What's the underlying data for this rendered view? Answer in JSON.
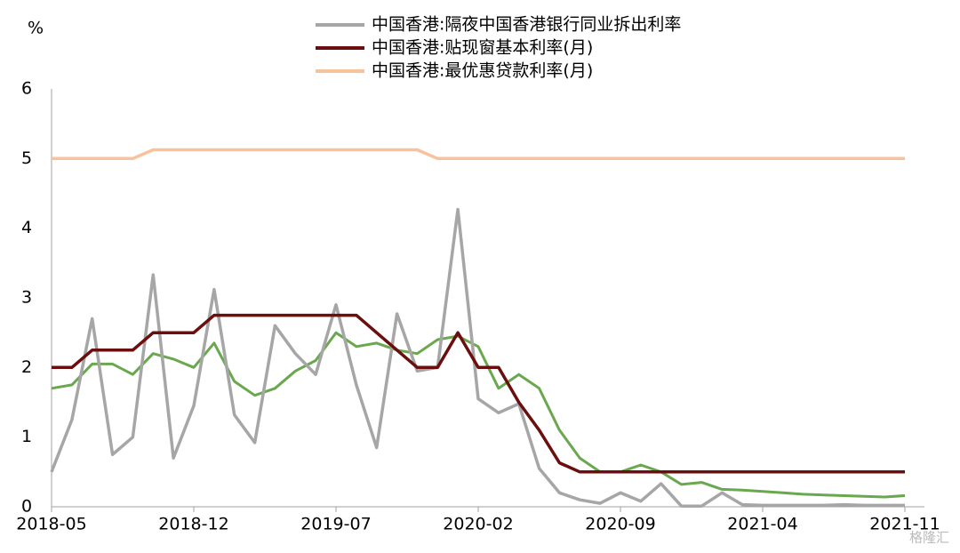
{
  "chart_data": {
    "type": "line",
    "y_unit": "%",
    "categories": [
      "2018-05",
      null,
      null,
      null,
      null,
      null,
      null,
      "2018-12",
      null,
      null,
      null,
      null,
      null,
      null,
      "2019-07",
      null,
      null,
      null,
      null,
      null,
      null,
      "2020-02",
      null,
      null,
      null,
      null,
      null,
      null,
      "2020-09",
      null,
      null,
      null,
      null,
      null,
      null,
      "2021-04",
      null,
      null,
      null,
      null,
      null,
      null,
      "2021-11"
    ],
    "series": [
      {
        "name": "中国香港:隔夜中国香港银行同业拆出利率",
        "color": "#a6a6a6",
        "values": [
          0.5,
          1.25,
          2.7,
          0.75,
          1.0,
          3.33,
          0.7,
          1.45,
          3.12,
          1.32,
          0.92,
          2.6,
          2.2,
          1.9,
          2.9,
          1.75,
          0.85,
          2.77,
          1.95,
          2.0,
          4.27,
          1.55,
          1.35,
          1.48,
          0.55,
          0.2,
          0.1,
          0.05,
          0.2,
          0.08,
          0.33,
          0.01,
          0.01,
          0.2,
          0.03,
          0.02,
          0.02,
          0.02,
          0.02,
          0.03,
          0.02,
          0.02,
          0.02
        ]
      },
      {
        "name": "中国香港:贴现窗基本利率(月)",
        "color": "#6b0e0e",
        "values": [
          2.0,
          2.0,
          2.25,
          2.25,
          2.25,
          2.5,
          2.5,
          2.5,
          2.75,
          2.75,
          2.75,
          2.75,
          2.75,
          2.75,
          2.75,
          2.75,
          2.5,
          2.25,
          2.0,
          2.0,
          2.5,
          2.0,
          2.0,
          1.5,
          1.1,
          0.63,
          0.5,
          0.5,
          0.5,
          0.5,
          0.5,
          0.5,
          0.5,
          0.5,
          0.5,
          0.5,
          0.5,
          0.5,
          0.5,
          0.5,
          0.5,
          0.5,
          0.5
        ]
      },
      {
        "name": "中国香港:最优惠贷款利率(月)",
        "color": "#f7c29c",
        "values": [
          5.0,
          5.0,
          5.0,
          5.0,
          5.0,
          5.125,
          5.125,
          5.125,
          5.125,
          5.125,
          5.125,
          5.125,
          5.125,
          5.125,
          5.125,
          5.125,
          5.125,
          5.125,
          5.125,
          5.0,
          5.0,
          5.0,
          5.0,
          5.0,
          5.0,
          5.0,
          5.0,
          5.0,
          5.0,
          5.0,
          5.0,
          5.0,
          5.0,
          5.0,
          5.0,
          5.0,
          5.0,
          5.0,
          5.0,
          5.0,
          5.0,
          5.0,
          5.0
        ]
      },
      {
        "color": "#6aa84f",
        "values": [
          1.7,
          1.75,
          2.05,
          2.05,
          1.9,
          2.2,
          2.12,
          2.0,
          2.35,
          1.8,
          1.6,
          1.7,
          1.95,
          2.1,
          2.5,
          2.3,
          2.35,
          2.25,
          2.2,
          2.4,
          2.45,
          2.3,
          1.7,
          1.9,
          1.7,
          1.1,
          0.7,
          0.5,
          0.5,
          0.6,
          0.5,
          0.32,
          0.35,
          0.25,
          0.24,
          0.22,
          0.2,
          0.18,
          0.17,
          0.16,
          0.15,
          0.14,
          0.16
        ]
      }
    ],
    "ylim": [
      0,
      6
    ],
    "yticks": [
      0,
      1,
      2,
      3,
      4,
      5,
      6
    ],
    "grid": false,
    "watermark": "格隆汇"
  }
}
